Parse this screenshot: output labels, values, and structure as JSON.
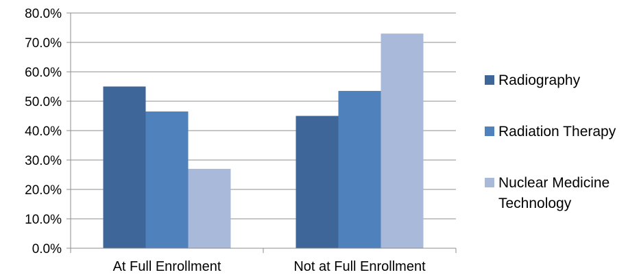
{
  "chart_data": {
    "type": "bar",
    "categories": [
      "At Full Enrollment",
      "Not at Full Enrollment"
    ],
    "series": [
      {
        "name": "Radiography",
        "values": [
          55.0,
          45.0
        ],
        "color": "#3f6699"
      },
      {
        "name": "Radiation Therapy",
        "values": [
          46.5,
          53.5
        ],
        "color": "#4f81bd"
      },
      {
        "name": "Nuclear Medicine Technology",
        "values": [
          27.0,
          73.0
        ],
        "color": "#a9b9d9"
      }
    ],
    "y_ticks": [
      "0.0%",
      "10.0%",
      "20.0%",
      "30.0%",
      "40.0%",
      "50.0%",
      "60.0%",
      "70.0%",
      "80.0%"
    ],
    "ylim": [
      0,
      80
    ],
    "grid": true,
    "legend_position": "right",
    "title": "",
    "xlabel": "",
    "ylabel": ""
  }
}
